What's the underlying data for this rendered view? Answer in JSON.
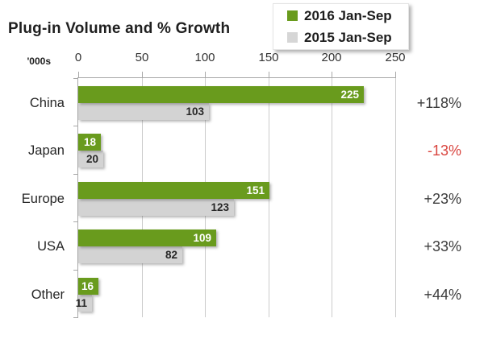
{
  "title": "Plug-in Volume and % Growth",
  "axis_unit_label": "'000s",
  "legend": [
    {
      "label": "2016 Jan-Sep",
      "color": "#699b1d"
    },
    {
      "label": "2015 Jan-Sep",
      "color": "#d6d6d6"
    }
  ],
  "colors": {
    "green_series": "#699b1d",
    "gray_series": "#d3d3d3",
    "value_on_green": "#ffffff",
    "value_on_gray": "#262626",
    "growth_positive": "#3c3c3c",
    "growth_negative": "#d9453f",
    "axis": "#a8a8a8",
    "gridline": "#cbcbcb"
  },
  "chart_data": {
    "type": "bar",
    "orientation": "horizontal",
    "title": "Plug-in Volume and % Growth",
    "xlabel": "'000s",
    "ylabel": "",
    "categories": [
      "China",
      "Japan",
      "Europe",
      "USA",
      "Other"
    ],
    "series": [
      {
        "name": "2016 Jan-Sep",
        "values": [
          225,
          18,
          151,
          109,
          16
        ]
      },
      {
        "name": "2015 Jan-Sep",
        "values": [
          103,
          20,
          123,
          82,
          11
        ]
      }
    ],
    "growth_labels": [
      "+118%",
      "-13%",
      "+23%",
      "+33%",
      "+44%"
    ],
    "x_ticks": [
      0,
      50,
      100,
      150,
      200,
      250
    ],
    "xlim": [
      0,
      250
    ],
    "grid": true,
    "legend_position": "top-right"
  }
}
